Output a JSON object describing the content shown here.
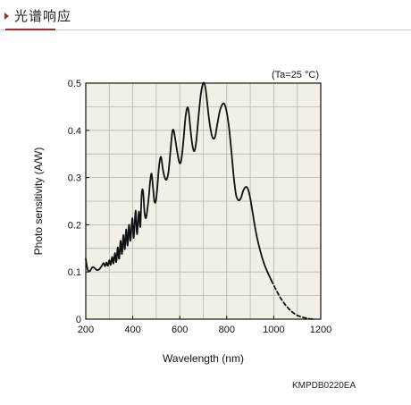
{
  "header": {
    "title": "光谱响应",
    "accent_color": "#b0262a",
    "marker_icon": "triangle-right-icon"
  },
  "chart_data": {
    "type": "line",
    "title": "",
    "xlabel": "Wavelength (nm)",
    "ylabel": "Photo sensitivity (A/W)",
    "annotation": "(Ta=25 °C)",
    "xlim": [
      200,
      1200
    ],
    "ylim": [
      0,
      0.5
    ],
    "xticks": [
      200,
      400,
      600,
      800,
      1000,
      1200
    ],
    "yticks": [
      0,
      0.1,
      0.2,
      0.3,
      0.4,
      0.5
    ],
    "grid": true,
    "background_color": "#f2f0e6",
    "series": [
      {
        "style": "solid",
        "points": [
          [
            200,
            0.128
          ],
          [
            205,
            0.112
          ],
          [
            210,
            0.103
          ],
          [
            218,
            0.102
          ],
          [
            228,
            0.11
          ],
          [
            238,
            0.108
          ],
          [
            248,
            0.104
          ],
          [
            258,
            0.106
          ],
          [
            268,
            0.113
          ],
          [
            276,
            0.119
          ],
          [
            282,
            0.112
          ],
          [
            288,
            0.12
          ],
          [
            294,
            0.113
          ],
          [
            300,
            0.125
          ],
          [
            306,
            0.115
          ],
          [
            312,
            0.132
          ],
          [
            318,
            0.118
          ],
          [
            324,
            0.14
          ],
          [
            330,
            0.121
          ],
          [
            336,
            0.152
          ],
          [
            342,
            0.128
          ],
          [
            348,
            0.166
          ],
          [
            354,
            0.138
          ],
          [
            360,
            0.178
          ],
          [
            366,
            0.148
          ],
          [
            372,
            0.19
          ],
          [
            378,
            0.156
          ],
          [
            384,
            0.2
          ],
          [
            390,
            0.166
          ],
          [
            398,
            0.214
          ],
          [
            404,
            0.172
          ],
          [
            412,
            0.23
          ],
          [
            418,
            0.18
          ],
          [
            426,
            0.228
          ],
          [
            432,
            0.196
          ],
          [
            438,
            0.266
          ],
          [
            444,
            0.27
          ],
          [
            450,
            0.226
          ],
          [
            456,
            0.214
          ],
          [
            462,
            0.232
          ],
          [
            468,
            0.258
          ],
          [
            474,
            0.292
          ],
          [
            480,
            0.308
          ],
          [
            486,
            0.28
          ],
          [
            492,
            0.25
          ],
          [
            498,
            0.25
          ],
          [
            504,
            0.276
          ],
          [
            512,
            0.325
          ],
          [
            520,
            0.344
          ],
          [
            528,
            0.318
          ],
          [
            536,
            0.3
          ],
          [
            544,
            0.296
          ],
          [
            552,
            0.312
          ],
          [
            560,
            0.354
          ],
          [
            568,
            0.396
          ],
          [
            574,
            0.4
          ],
          [
            580,
            0.384
          ],
          [
            588,
            0.358
          ],
          [
            596,
            0.336
          ],
          [
            602,
            0.33
          ],
          [
            608,
            0.342
          ],
          [
            616,
            0.38
          ],
          [
            624,
            0.426
          ],
          [
            632,
            0.448
          ],
          [
            638,
            0.44
          ],
          [
            646,
            0.4
          ],
          [
            654,
            0.368
          ],
          [
            662,
            0.356
          ],
          [
            670,
            0.376
          ],
          [
            680,
            0.43
          ],
          [
            690,
            0.478
          ],
          [
            700,
            0.5
          ],
          [
            708,
            0.494
          ],
          [
            716,
            0.462
          ],
          [
            724,
            0.426
          ],
          [
            732,
            0.4
          ],
          [
            740,
            0.384
          ],
          [
            750,
            0.386
          ],
          [
            760,
            0.414
          ],
          [
            770,
            0.44
          ],
          [
            780,
            0.454
          ],
          [
            790,
            0.456
          ],
          [
            800,
            0.438
          ],
          [
            810,
            0.404
          ],
          [
            820,
            0.354
          ],
          [
            830,
            0.3
          ],
          [
            840,
            0.262
          ],
          [
            850,
            0.252
          ],
          [
            860,
            0.256
          ],
          [
            870,
            0.272
          ],
          [
            880,
            0.28
          ],
          [
            890,
            0.276
          ],
          [
            900,
            0.256
          ],
          [
            910,
            0.226
          ],
          [
            920,
            0.196
          ],
          [
            930,
            0.17
          ],
          [
            945,
            0.14
          ],
          [
            960,
            0.116
          ],
          [
            975,
            0.098
          ],
          [
            990,
            0.082
          ]
        ]
      },
      {
        "style": "dashed",
        "points": [
          [
            990,
            0.082
          ],
          [
            1010,
            0.062
          ],
          [
            1030,
            0.044
          ],
          [
            1050,
            0.03
          ],
          [
            1070,
            0.019
          ],
          [
            1090,
            0.011
          ],
          [
            1110,
            0.006
          ],
          [
            1130,
            0.003
          ],
          [
            1150,
            0.001
          ],
          [
            1170,
            0.0
          ]
        ]
      }
    ]
  },
  "figure_code": "KMPDB0220EA"
}
